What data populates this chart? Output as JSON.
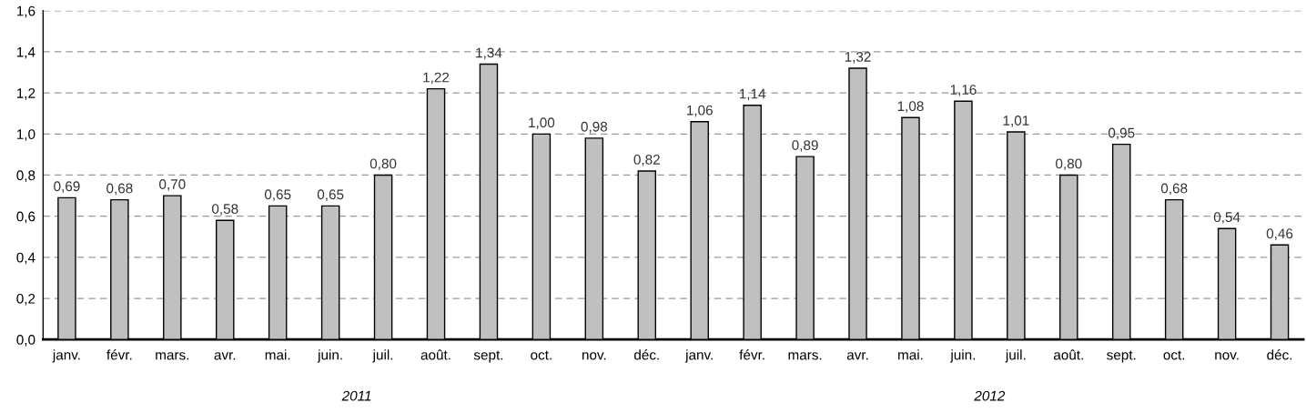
{
  "chart_data": {
    "type": "bar",
    "categories": [
      "janv.",
      "févr.",
      "mars.",
      "avr.",
      "mai.",
      "juin.",
      "juil.",
      "août.",
      "sept.",
      "oct.",
      "nov.",
      "déc.",
      "janv.",
      "févr.",
      "mars.",
      "avr.",
      "mai.",
      "juin.",
      "juil.",
      "août.",
      "sept.",
      "oct.",
      "nov.",
      "déc."
    ],
    "values": [
      0.69,
      0.68,
      0.7,
      0.58,
      0.65,
      0.65,
      0.8,
      1.22,
      1.34,
      1.0,
      0.98,
      0.82,
      1.06,
      1.14,
      0.89,
      1.32,
      1.08,
      1.16,
      1.01,
      0.8,
      0.95,
      0.68,
      0.54,
      0.46
    ],
    "value_labels": [
      "0,69",
      "0,68",
      "0,70",
      "0,58",
      "0,65",
      "0,65",
      "0,80",
      "1,22",
      "1,34",
      "1,00",
      "0,98",
      "0,82",
      "1,06",
      "1,14",
      "0,89",
      "1,32",
      "1,08",
      "1,16",
      "1,01",
      "0,80",
      "0,95",
      "0,68",
      "0,54",
      "0,46"
    ],
    "color": "#c0c0c0",
    "ylim": [
      0,
      1.6
    ],
    "yticks": [
      {
        "value": 0,
        "label": "0,0"
      },
      {
        "value": 0.2,
        "label": "0,2"
      },
      {
        "value": 0.4,
        "label": "0,4"
      },
      {
        "value": 0.6,
        "label": "0,6"
      },
      {
        "value": 0.8,
        "label": "0,8"
      },
      {
        "value": 1.0,
        "label": "1,0"
      },
      {
        "value": 1.2,
        "label": "1,2"
      },
      {
        "value": 1.4,
        "label": "1,4"
      },
      {
        "value": 1.6,
        "label": "1,6"
      }
    ],
    "grid": "y",
    "annotations": [
      "2011",
      "2012"
    ]
  }
}
